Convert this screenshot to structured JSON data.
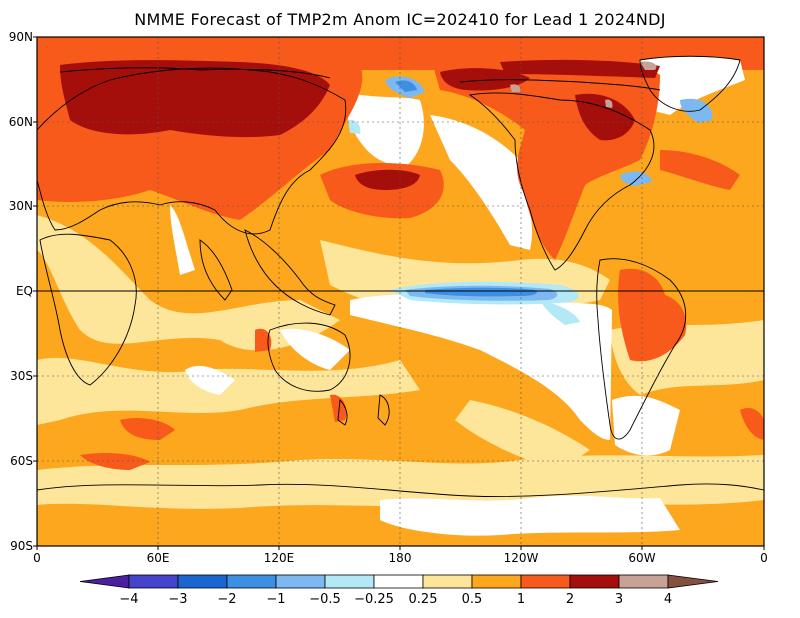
{
  "title": "NMME Forecast of TMP2m Anom IC=202410 for Lead 1 2024NDJ",
  "lat_ticks": [
    "90N",
    "60N",
    "30N",
    "EQ",
    "30S",
    "60S",
    "90S"
  ],
  "lon_ticks": [
    "0",
    "60E",
    "120E",
    "180",
    "120W",
    "60W",
    "0"
  ],
  "colorbar": {
    "levels": [
      "-4",
      "-3",
      "-2",
      "-1",
      "-0.5",
      "-0.25",
      "0.25",
      "0.5",
      "1",
      "2",
      "3",
      "4"
    ],
    "colors": [
      "#4a1fa0",
      "#4444cc",
      "#1a66d0",
      "#3d8fe3",
      "#7db9f0",
      "#b3e8f7",
      "#ffffff",
      "#fde59a",
      "#fca71d",
      "#f85a1b",
      "#a40e0b",
      "#c8a197",
      "#865040"
    ]
  }
}
